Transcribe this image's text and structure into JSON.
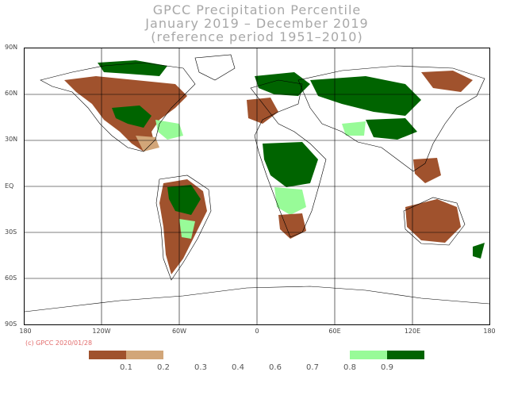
{
  "title": {
    "line1": "GPCC Precipitation Percentile",
    "line2": "January 2019 – December 2019",
    "line3": "(reference period 1951–2010)"
  },
  "lat_labels": [
    "90N",
    "60N",
    "30N",
    "EQ",
    "30S",
    "60S",
    "90S"
  ],
  "lon_labels": [
    "180",
    "120W",
    "60W",
    "0",
    "60E",
    "120E",
    "180"
  ],
  "copyright": "(c) GPCC 2020/01/28",
  "legend": {
    "colors": {
      "very_dry": "#a0522d",
      "dry": "#d2a679",
      "wet": "#98fb98",
      "very_wet": "#006400"
    },
    "ticks": [
      "0.1",
      "0.2",
      "0.3",
      "0.4",
      "0.6",
      "0.7",
      "0.8",
      "0.9"
    ]
  },
  "map": {
    "coastline_color": "#000000",
    "grid_color": "#000000"
  }
}
